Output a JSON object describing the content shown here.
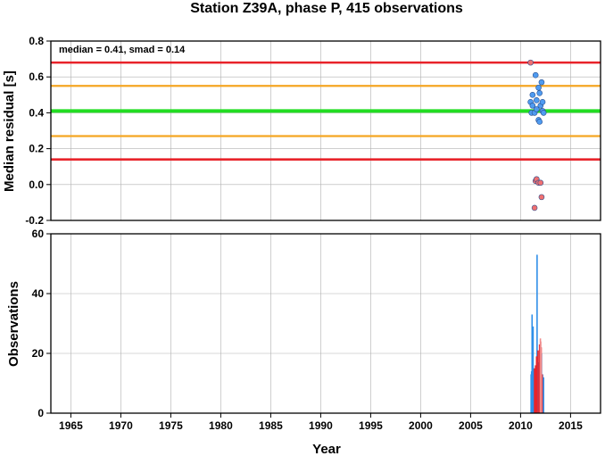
{
  "chart_data": [
    {
      "type": "scatter",
      "title": "Station Z39A, phase P, 415 observations",
      "xlabel": "",
      "ylabel": "Median residual [s]",
      "xlim": [
        1963,
        2018
      ],
      "ylim": [
        -0.2,
        0.8
      ],
      "yticks": [
        "-0.2",
        "0.0",
        "0.2",
        "0.4",
        "0.6",
        "0.8"
      ],
      "annotation": "median = 0.41, smad = 0.14",
      "grid": true,
      "hlines": [
        {
          "y": 0.41,
          "color": "#22dd22",
          "role": "median"
        },
        {
          "y": 0.55,
          "color": "#f5a623",
          "role": "median + 1 smad"
        },
        {
          "y": 0.27,
          "color": "#f5a623",
          "role": "median - 1 smad"
        },
        {
          "y": 0.68,
          "color": "#e8232a",
          "role": "median + 2 smad"
        },
        {
          "y": 0.14,
          "color": "#e8232a",
          "role": "median - 2 smad"
        }
      ],
      "series": [
        {
          "color": "#4f9bf0",
          "points": [
            [
              2011.0,
              0.46
            ],
            [
              2011.1,
              0.4
            ],
            [
              2011.2,
              0.44
            ],
            [
              2011.2,
              0.5
            ],
            [
              2011.4,
              0.4
            ],
            [
              2011.5,
              0.61
            ],
            [
              2011.6,
              0.47
            ],
            [
              2011.6,
              0.42
            ],
            [
              2011.8,
              0.54
            ],
            [
              2011.8,
              0.36
            ],
            [
              2011.9,
              0.35
            ],
            [
              2011.9,
              0.51
            ],
            [
              2012.0,
              0.44
            ],
            [
              2012.1,
              0.57
            ],
            [
              2012.2,
              0.41
            ],
            [
              2012.2,
              0.46
            ],
            [
              2012.3,
              0.4
            ]
          ]
        },
        {
          "color": "#f07070",
          "points": [
            [
              2011.0,
              0.68
            ],
            [
              2011.4,
              -0.13
            ],
            [
              2011.5,
              0.02
            ],
            [
              2011.6,
              0.03
            ],
            [
              2011.8,
              0.01
            ],
            [
              2012.0,
              0.01
            ],
            [
              2012.1,
              -0.07
            ]
          ]
        }
      ]
    },
    {
      "type": "bar",
      "title": "",
      "xlabel": "Year",
      "ylabel": "Observations",
      "xlim": [
        1963,
        2018
      ],
      "ylim": [
        0,
        60
      ],
      "xticks": [
        "1965",
        "1970",
        "1975",
        "1980",
        "1985",
        "1990",
        "1995",
        "2000",
        "2005",
        "2010",
        "2015"
      ],
      "yticks": [
        "0",
        "20",
        "40",
        "60"
      ],
      "grid": true,
      "series": [
        {
          "color": "#2f8fe8",
          "bars": [
            [
              2011.05,
              13
            ],
            [
              2011.1,
              14
            ],
            [
              2011.15,
              33
            ],
            [
              2011.2,
              28
            ],
            [
              2011.25,
              29
            ],
            [
              2011.3,
              13
            ],
            [
              2011.35,
              15
            ],
            [
              2011.45,
              14
            ],
            [
              2011.55,
              13
            ],
            [
              2011.65,
              53
            ],
            [
              2011.7,
              18
            ],
            [
              2011.8,
              17
            ],
            [
              2011.85,
              16
            ],
            [
              2011.95,
              14
            ],
            [
              2012.05,
              22
            ],
            [
              2012.1,
              20
            ],
            [
              2012.2,
              13
            ],
            [
              2012.3,
              12
            ]
          ]
        },
        {
          "color": "#e8232a",
          "bars": [
            [
              2011.4,
              15
            ],
            [
              2011.5,
              16
            ],
            [
              2011.6,
              19
            ],
            [
              2011.75,
              21
            ],
            [
              2011.9,
              23
            ],
            [
              2012.0,
              24
            ],
            [
              2012.15,
              13
            ]
          ]
        },
        {
          "color": "#f08a8a",
          "bars": [
            [
              2011.98,
              25
            ],
            [
              2012.08,
              22
            ]
          ]
        }
      ]
    }
  ]
}
